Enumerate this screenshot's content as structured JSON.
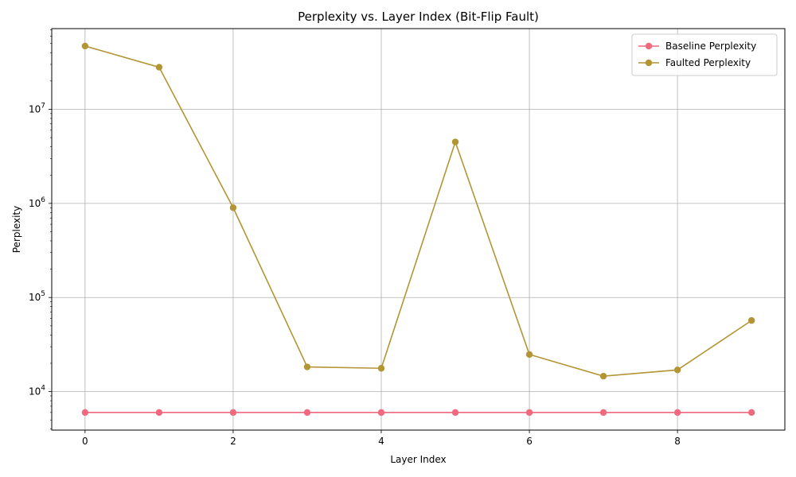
{
  "chart_data": {
    "type": "line",
    "title": "Perplexity vs. Layer Index (Bit-Flip Fault)",
    "xlabel": "Layer Index",
    "ylabel": "Perplexity",
    "x": [
      0,
      1,
      2,
      3,
      4,
      5,
      6,
      7,
      8,
      9
    ],
    "xlim": [
      -0.45,
      9.45
    ],
    "xticks": [
      0,
      2,
      4,
      6,
      8
    ],
    "xtick_labels": [
      "0",
      "2",
      "4",
      "6",
      "8"
    ],
    "yscale": "log",
    "ylim": [
      3900,
      72000000
    ],
    "yticks": [
      10000,
      100000,
      1000000,
      10000000
    ],
    "ytick_labels": [
      {
        "base": "10",
        "exp": "4"
      },
      {
        "base": "10",
        "exp": "5"
      },
      {
        "base": "10",
        "exp": "6"
      },
      {
        "base": "10",
        "exp": "7"
      }
    ],
    "grid": true,
    "legend_position": "top-right",
    "series": [
      {
        "name": "Baseline Perplexity",
        "color": "#f0697f",
        "values": [
          6000,
          6000,
          6000,
          6000,
          6000,
          6000,
          6000,
          6000,
          6000,
          6000
        ]
      },
      {
        "name": "Faulted Perplexity",
        "color": "#b39535",
        "values": [
          47000000,
          28000000,
          900000,
          18300,
          17700,
          4500000,
          24800,
          14600,
          17000,
          57000
        ]
      }
    ]
  }
}
